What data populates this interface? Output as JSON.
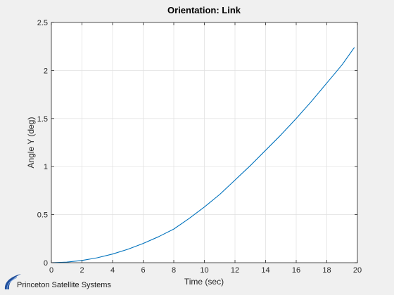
{
  "chart_data": {
    "type": "line",
    "title": "Orientation: Link",
    "xlabel": "Time (sec)",
    "ylabel": "Angle Y (deg)",
    "xlim": [
      0,
      20
    ],
    "ylim": [
      0,
      2.5
    ],
    "xticks": [
      0,
      2,
      4,
      6,
      8,
      10,
      12,
      14,
      16,
      18,
      20
    ],
    "yticks": [
      0,
      0.5,
      1,
      1.5,
      2,
      2.5
    ],
    "xtick_labels": [
      "0",
      "2",
      "4",
      "6",
      "8",
      "10",
      "12",
      "14",
      "16",
      "18",
      "20"
    ],
    "ytick_labels": [
      "0",
      "0.5",
      "1",
      "1.5",
      "2",
      "2.5"
    ],
    "grid": true,
    "series": [
      {
        "x": [
          0,
          1,
          2,
          3,
          4,
          5,
          6,
          7,
          8,
          9,
          10,
          11,
          12,
          13,
          14,
          15,
          16,
          17,
          18,
          19,
          19.8
        ],
        "y": [
          0,
          0.006,
          0.023,
          0.051,
          0.09,
          0.14,
          0.2,
          0.27,
          0.35,
          0.46,
          0.58,
          0.71,
          0.86,
          1.01,
          1.17,
          1.33,
          1.5,
          1.68,
          1.87,
          2.06,
          2.24
        ],
        "color": "#0072bd"
      }
    ]
  },
  "logo": {
    "text": "Princeton Satellite Systems"
  }
}
